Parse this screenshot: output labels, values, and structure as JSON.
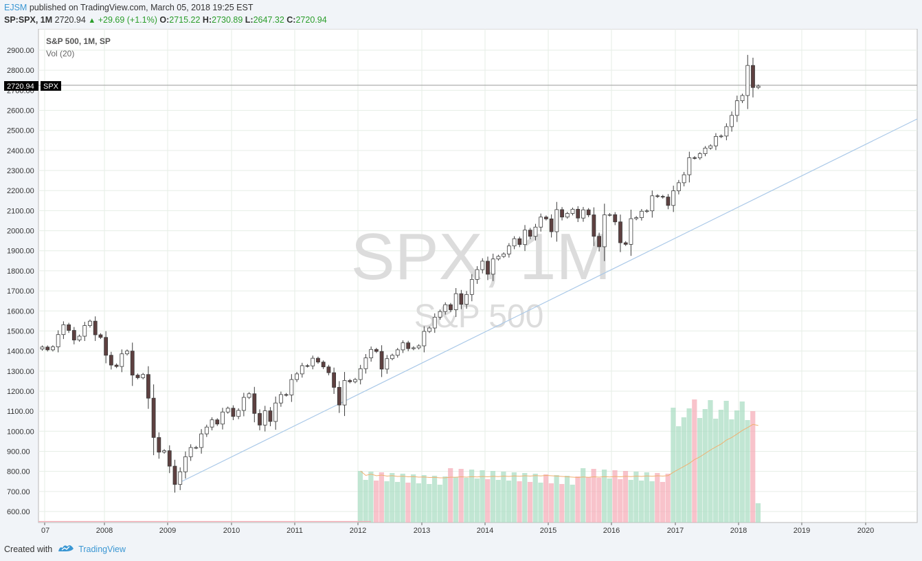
{
  "header": {
    "user": "EJSM",
    "published": "published on TradingView.com, March 05, 2018 19:25 EST",
    "symbol": "SP:SPX, 1M",
    "last": "2720.94",
    "change": "+29.69 (+1.1%)",
    "open_label": "O:",
    "open": "2715.22",
    "high_label": "H:",
    "high": "2730.89",
    "low_label": "L:",
    "low": "2647.32",
    "close_label": "C:",
    "close": "2720.94"
  },
  "legend": {
    "title": "S&P 500, 1M, SP",
    "vol": "Vol (20)"
  },
  "watermark": {
    "big": "SPX, 1M",
    "small": "S&P 500"
  },
  "price_tag": {
    "value": "2720.94",
    "symbol": "SPX"
  },
  "footer": {
    "created_with": "Created with",
    "brand": "TradingView"
  },
  "colors": {
    "up_fill": "#ffffff",
    "down_fill": "#5e4040",
    "candle_stroke": "#3a3a3a",
    "vol_up": "#a6dcc0",
    "vol_down": "#f5aab5",
    "trend": "#a9c8e8",
    "vol_ma": "#f0b070",
    "grid": "#e6eee6"
  },
  "chart_data": {
    "type": "candlestick",
    "title": "S&P 500, 1M, SP",
    "y_ticks": [
      600,
      700,
      800,
      900,
      1000,
      1100,
      1200,
      1300,
      1400,
      1500,
      1600,
      1700,
      1800,
      1900,
      2000,
      2100,
      2200,
      2300,
      2400,
      2500,
      2600,
      2700,
      2800,
      2900
    ],
    "y_tick_labels": [
      "600.00",
      "700.00",
      "800.00",
      "900.00",
      "1000.00",
      "1100.00",
      "1200.00",
      "1300.00",
      "1400.00",
      "1500.00",
      "1600.00",
      "1700.00",
      "1800.00",
      "1900.00",
      "2000.00",
      "2100.00",
      "2200.00",
      "2300.00",
      "2400.00",
      "2500.00",
      "2600.00",
      "2700.00",
      "2800.00",
      "2900.00"
    ],
    "x_ticks": [
      "07",
      "2008",
      "2009",
      "2010",
      "2011",
      "2012",
      "2013",
      "2014",
      "2015",
      "2016",
      "2017",
      "2018",
      "2019",
      "2020"
    ],
    "ylim": [
      545,
      2960
    ],
    "closes": [
      1420,
      1406,
      1421,
      1482,
      1531,
      1503,
      1455,
      1474,
      1527,
      1549,
      1481,
      1468,
      1379,
      1330,
      1323,
      1386,
      1400,
      1280,
      1267,
      1283,
      1165,
      969,
      896,
      903,
      826,
      735,
      798,
      873,
      919,
      919,
      987,
      1021,
      1057,
      1036,
      1096,
      1115,
      1074,
      1104,
      1169,
      1187,
      1089,
      1031,
      1102,
      1049,
      1141,
      1183,
      1181,
      1258,
      1286,
      1327,
      1326,
      1364,
      1345,
      1321,
      1292,
      1219,
      1131,
      1253,
      1247,
      1258,
      1312,
      1366,
      1408,
      1398,
      1310,
      1362,
      1379,
      1406,
      1441,
      1412,
      1416,
      1426,
      1498,
      1515,
      1569,
      1597,
      1631,
      1606,
      1686,
      1633,
      1682,
      1757,
      1806,
      1848,
      1783,
      1859,
      1872,
      1884,
      1924,
      1960,
      1931,
      2003,
      1972,
      2018,
      2068,
      2059,
      1995,
      2105,
      2068,
      2086,
      2107,
      2063,
      2104,
      2079,
      1972,
      1920,
      2079,
      2080,
      2044,
      1940,
      1932,
      2060,
      2065,
      2097,
      2099,
      2174,
      2171,
      2168,
      2126,
      2199,
      2239,
      2279,
      2364,
      2363,
      2384,
      2412,
      2423,
      2470,
      2472,
      2519,
      2575,
      2648,
      2674,
      2824,
      2714,
      2721
    ],
    "volume_visible_from": "2012",
    "volume_ma_period": 20
  }
}
